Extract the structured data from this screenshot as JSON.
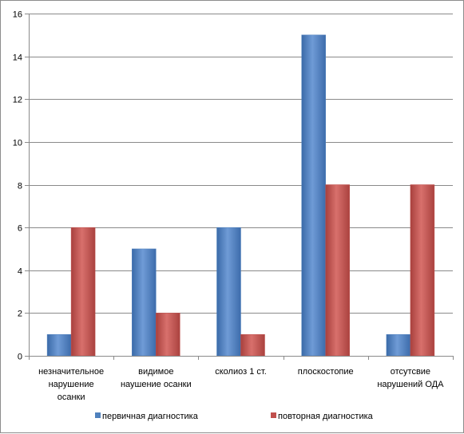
{
  "chart_data": {
    "type": "bar",
    "categories": [
      [
        "незначительное",
        "нарушение",
        "осанки"
      ],
      [
        "видимое",
        "наушение осанки"
      ],
      [
        "сколиоз 1 ст."
      ],
      [
        "плоскостопие"
      ],
      [
        "отсутсвие",
        "нарушений ОДА"
      ]
    ],
    "series": [
      {
        "name": "первичная диагностика",
        "values": [
          1,
          5,
          6,
          15,
          1
        ],
        "color": "#4f81bd"
      },
      {
        "name": "повторная диагностика",
        "values": [
          6,
          2,
          1,
          8,
          8
        ],
        "color": "#c0504d"
      }
    ],
    "yticks": [
      0,
      2,
      4,
      6,
      8,
      10,
      12,
      14,
      16
    ],
    "ylim": [
      0,
      16
    ],
    "grid": true,
    "legend": "bottom",
    "title": "",
    "xlabel": "",
    "ylabel": ""
  }
}
